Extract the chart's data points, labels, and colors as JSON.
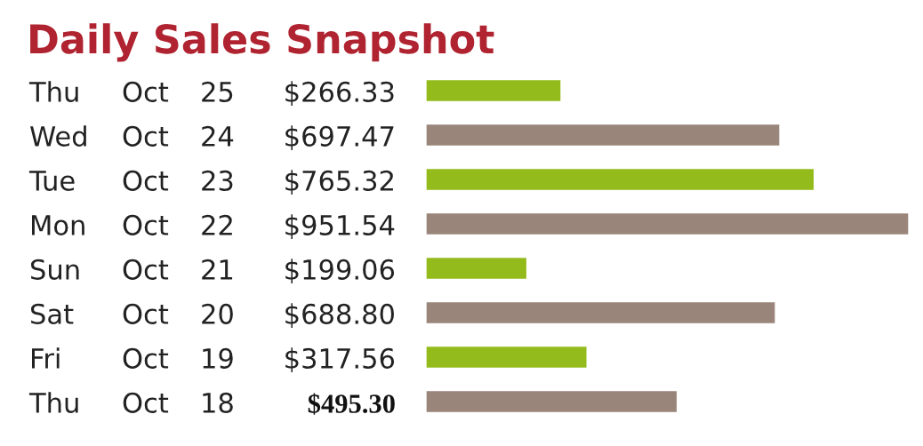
{
  "chart_data": {
    "type": "bar",
    "orientation": "horizontal",
    "title": "Daily Sales Snapshot",
    "categories": [
      "Thu Oct 25",
      "Wed Oct 24",
      "Tue Oct 23",
      "Mon Oct 22",
      "Sun Oct 21",
      "Sat Oct 20",
      "Fri Oct 19",
      "Thu Oct 18"
    ],
    "values": [
      266.33,
      697.47,
      765.32,
      951.54,
      199.06,
      688.8,
      317.56,
      495.3
    ],
    "colors": [
      "#93bb1b",
      "#9a857a",
      "#93bb1b",
      "#9a857a",
      "#93bb1b",
      "#9a857a",
      "#93bb1b",
      "#9a857a"
    ],
    "value_labels": [
      "$266.33",
      "$697.47",
      "$765.32",
      "$951.54",
      "$199.06",
      "$688.80",
      "$317.56",
      "$495.30"
    ]
  }
}
